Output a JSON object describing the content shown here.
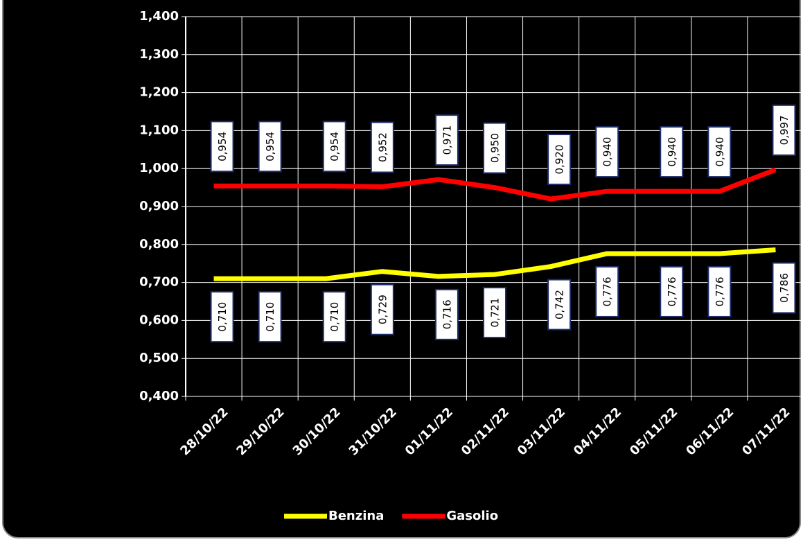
{
  "chart_data": {
    "type": "line",
    "categories": [
      "28/10/22",
      "29/10/22",
      "30/10/22",
      "31/10/22",
      "01/11/22",
      "02/11/22",
      "03/11/22",
      "04/11/22",
      "05/11/22",
      "06/11/22",
      "07/11/22"
    ],
    "series": [
      {
        "name": "Benzina",
        "color": "#ffff00",
        "values": [
          0.71,
          0.71,
          0.71,
          0.729,
          0.716,
          0.721,
          0.742,
          0.776,
          0.776,
          0.776,
          0.786
        ],
        "value_labels": [
          "0,710",
          "0,710",
          "0,710",
          "0,729",
          "0,716",
          "0,721",
          "0,742",
          "0,776",
          "0,776",
          "0,776",
          "0,786"
        ]
      },
      {
        "name": "Gasolio",
        "color": "#ff0000",
        "values": [
          0.954,
          0.954,
          0.954,
          0.952,
          0.971,
          0.95,
          0.92,
          0.94,
          0.94,
          0.94,
          0.997
        ],
        "value_labels": [
          "0,954",
          "0,954",
          "0,954",
          "0,952",
          "0,971",
          "0,950",
          "0,920",
          "0,940",
          "0,940",
          "0,940",
          "0,997"
        ]
      }
    ],
    "ylim": [
      0.4,
      1.4
    ],
    "yticks": [
      {
        "value": 0.4,
        "label": "0,400"
      },
      {
        "value": 0.5,
        "label": "0,500"
      },
      {
        "value": 0.6,
        "label": "0,600"
      },
      {
        "value": 0.7,
        "label": "0,700"
      },
      {
        "value": 0.8,
        "label": "0,800"
      },
      {
        "value": 0.9,
        "label": "0,900"
      },
      {
        "value": 1.0,
        "label": "1,000"
      },
      {
        "value": 1.1,
        "label": "1,100"
      },
      {
        "value": 1.2,
        "label": "1,200"
      },
      {
        "value": 1.3,
        "label": "1,300"
      },
      {
        "value": 1.4,
        "label": "1,400"
      }
    ],
    "grid": true,
    "legend": "bottom"
  }
}
